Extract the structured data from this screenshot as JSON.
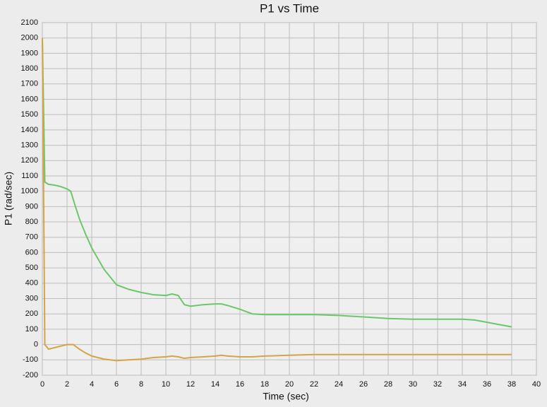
{
  "chart_data": {
    "type": "line",
    "title": "P1 vs Time",
    "x_label": "Time (sec)",
    "y_label": "P1 (rad/sec)",
    "xlim": [
      0,
      40
    ],
    "ylim": [
      -200,
      2100
    ],
    "xticks": [
      0,
      2,
      4,
      6,
      8,
      10,
      12,
      14,
      16,
      18,
      20,
      22,
      24,
      26,
      28,
      30,
      32,
      34,
      36,
      38,
      40
    ],
    "yticks": [
      -200,
      -100,
      0,
      100,
      200,
      300,
      400,
      500,
      600,
      700,
      800,
      900,
      1000,
      1100,
      1200,
      1300,
      1400,
      1500,
      1600,
      1700,
      1800,
      1900,
      2000,
      2100
    ],
    "grid": true,
    "series": [
      {
        "color": "#6cc76c",
        "x": [
          0,
          0.2,
          0.5,
          1,
          1.5,
          2,
          2.3,
          2.6,
          3,
          3.5,
          4,
          4.5,
          5,
          5.5,
          6,
          7,
          8,
          9,
          10,
          10.5,
          11,
          11.5,
          12,
          13,
          14,
          14.5,
          15,
          16,
          17,
          18,
          20,
          22,
          24,
          25,
          26,
          28,
          30,
          32,
          34,
          35,
          36,
          37,
          38
        ],
        "values": [
          2000,
          1060,
          1045,
          1040,
          1030,
          1015,
          1000,
          920,
          820,
          720,
          630,
          560,
          490,
          440,
          390,
          360,
          340,
          325,
          320,
          330,
          320,
          260,
          250,
          260,
          265,
          265,
          255,
          230,
          200,
          195,
          195,
          195,
          190,
          185,
          180,
          170,
          165,
          165,
          165,
          160,
          145,
          130,
          115
        ]
      },
      {
        "color": "#d4a448",
        "x": [
          0,
          0.2,
          0.5,
          1,
          1.5,
          2,
          2.5,
          3,
          3.5,
          4,
          5,
          6,
          7,
          8,
          9,
          10,
          10.5,
          11,
          11.5,
          12,
          13,
          14,
          14.5,
          15,
          16,
          17,
          18,
          20,
          22,
          24,
          30,
          38
        ],
        "values": [
          2000,
          0,
          -30,
          -20,
          -10,
          0,
          0,
          -30,
          -55,
          -75,
          -95,
          -105,
          -100,
          -95,
          -85,
          -80,
          -75,
          -80,
          -90,
          -85,
          -80,
          -75,
          -70,
          -75,
          -80,
          -80,
          -75,
          -70,
          -65,
          -65,
          -65,
          -65
        ]
      }
    ]
  }
}
